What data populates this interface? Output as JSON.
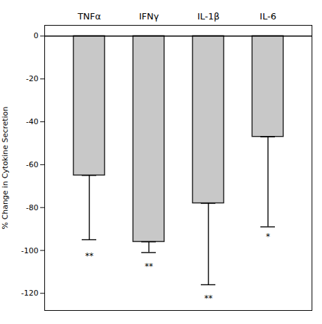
{
  "chart_data": {
    "type": "bar",
    "categories": [
      "TNFα",
      "IFNγ",
      "IL-1β",
      "IL-6"
    ],
    "values": [
      -65,
      -96,
      -78,
      -47
    ],
    "error_lower": [
      30,
      5,
      38,
      42
    ],
    "color": "#c8c8c8",
    "ylabel": "% Change in Cytokine Secretion",
    "ylim": [
      -128,
      5
    ],
    "yticks": [
      0,
      -20,
      -40,
      -60,
      -80,
      -100,
      -120
    ],
    "annotations": [
      {
        "text": "**",
        "x": "TNFα",
        "y": -101
      },
      {
        "text": "**",
        "x": "IFNγ",
        "y": -106
      },
      {
        "text": "**",
        "x": "IL-1β",
        "y": -121
      },
      {
        "text": "*",
        "x": "IL-6",
        "y": -92
      }
    ],
    "grid": false
  }
}
